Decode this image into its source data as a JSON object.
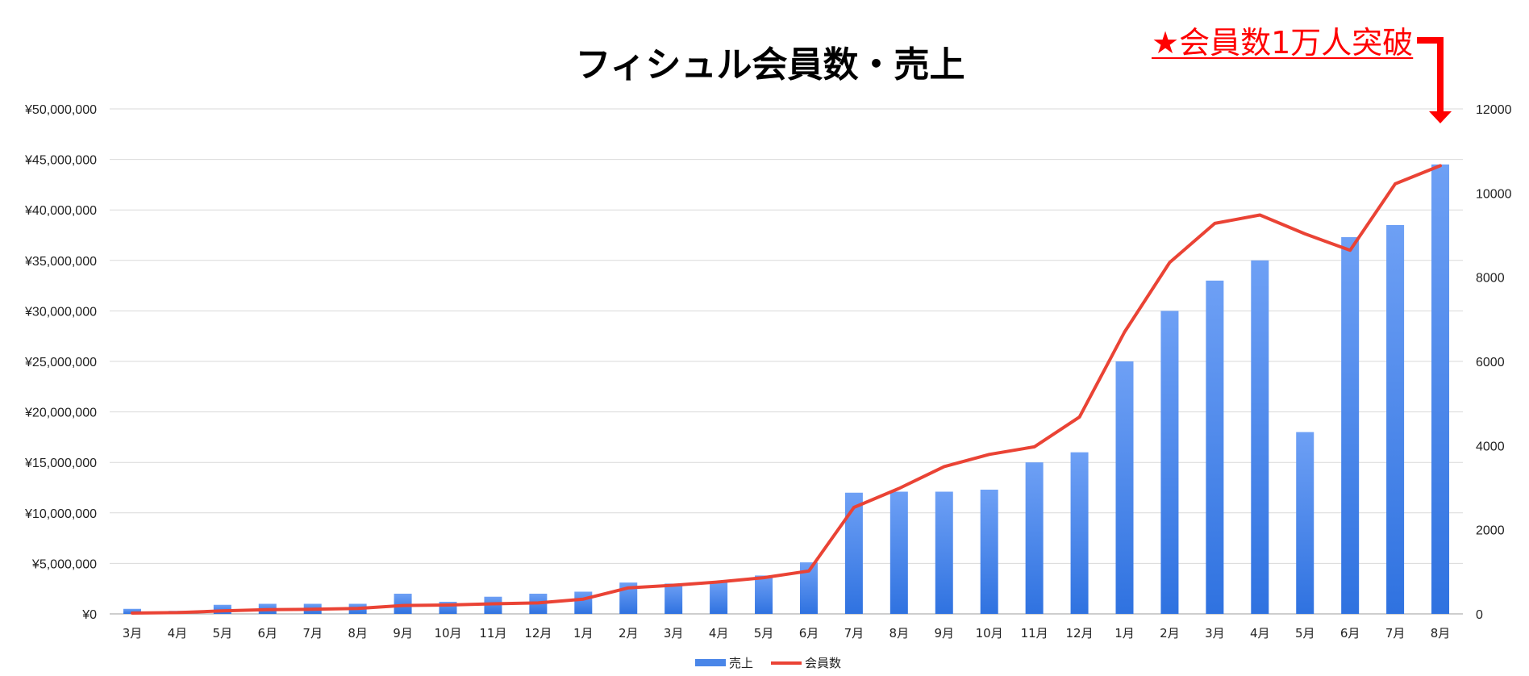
{
  "chart_data": {
    "type": "bar+line",
    "title": "フィシュル会員数・売上",
    "categories": [
      "3月",
      "4月",
      "5月",
      "6月",
      "7月",
      "8月",
      "9月",
      "10月",
      "11月",
      "12月",
      "1月",
      "2月",
      "3月",
      "4月",
      "5月",
      "6月",
      "7月",
      "8月",
      "9月",
      "10月",
      "11月",
      "12月",
      "1月",
      "2月",
      "3月",
      "4月",
      "5月",
      "6月",
      "7月",
      "8月"
    ],
    "series": [
      {
        "name": "売上",
        "kind": "bar",
        "axis": "left",
        "color": "#4a86e8",
        "values": [
          500000,
          300000,
          900000,
          1000000,
          1000000,
          1000000,
          2000000,
          1200000,
          1700000,
          2000000,
          2200000,
          3100000,
          3000000,
          3200000,
          3800000,
          5100000,
          12000000,
          12100000,
          12100000,
          12300000,
          15000000,
          16000000,
          25000000,
          30000000,
          33000000,
          35000000,
          18000000,
          37300000,
          38500000,
          44500000
        ]
      },
      {
        "name": "会員数",
        "kind": "line",
        "axis": "right",
        "color": "#ea4335",
        "values": [
          20,
          30,
          70,
          100,
          110,
          130,
          200,
          210,
          240,
          260,
          350,
          620,
          680,
          760,
          860,
          1020,
          2530,
          2980,
          3500,
          3790,
          3970,
          4680,
          6700,
          8350,
          9280,
          9480,
          9030,
          8640,
          10220,
          10650
        ]
      }
    ],
    "y_left": {
      "min": 0,
      "max": 50000000,
      "step": 5000000,
      "tick_labels": [
        "¥0",
        "¥5,000,000",
        "¥10,000,000",
        "¥15,000,000",
        "¥20,000,000",
        "¥25,000,000",
        "¥30,000,000",
        "¥35,000,000",
        "¥40,000,000",
        "¥45,000,000",
        "¥50,000,000"
      ]
    },
    "y_right": {
      "min": 0,
      "max": 12000,
      "step": 2000,
      "tick_labels": [
        "0",
        "2000",
        "4000",
        "6000",
        "8000",
        "10000",
        "12000"
      ]
    },
    "grid": true,
    "legend": {
      "placement": "bottom-center",
      "entries": [
        "売上",
        "会員数"
      ]
    },
    "annotation": {
      "text": "★会員数1万人突破",
      "color": "#ff0000",
      "points_to": "8月"
    }
  }
}
